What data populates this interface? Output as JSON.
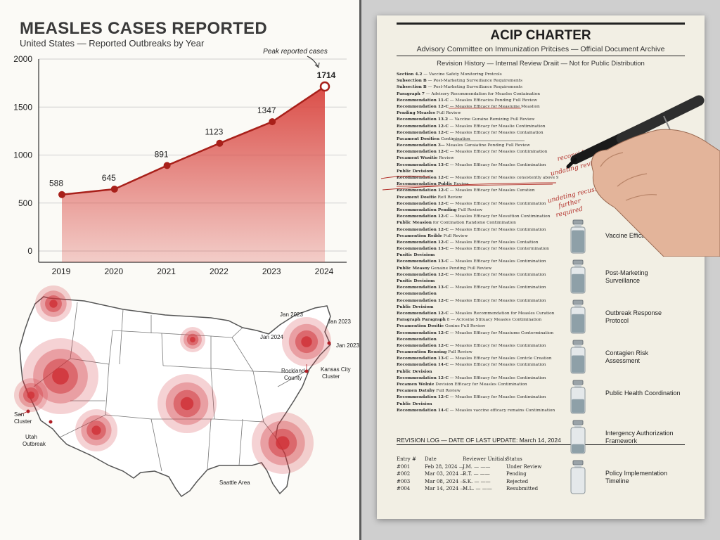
{
  "left_panel": {
    "title": "MEASLES CASES REPORTED",
    "subtitle": "United States — Reported Outbreaks by Year",
    "peak_annotation": "Peak reported cases"
  },
  "chart_data": {
    "type": "area",
    "title": "MEASLES CASES REPORTED",
    "subtitle": "United States — Reported Outbreaks by Year",
    "x": [
      "2019",
      "2020",
      "2021",
      "2022",
      "2023",
      "2024"
    ],
    "series": [
      {
        "values": [
          588,
          645,
          891,
          1123,
          1347,
          1714
        ]
      }
    ],
    "value_labels": [
      "588",
      "645",
      "891",
      "1123",
      "1347",
      "1714"
    ],
    "yticks": [
      "2000",
      "1500",
      "1000",
      "500",
      "0"
    ],
    "ytick_values": [
      2000,
      1500,
      1000,
      500,
      0
    ],
    "ylim": [
      0,
      2000
    ],
    "xlabel": "",
    "ylabel": "",
    "grid": true,
    "legend": "none",
    "line_color": "#a8201a",
    "fill_color": "#d9453f"
  },
  "map": {
    "labels": [
      "Jan 2023",
      "Jan 2023",
      "Jan 2023",
      "Jan 2024",
      "Rockland",
      "County",
      "Kansas City",
      "Cluster",
      "San",
      "Cluster",
      "Utah",
      "Outbreak",
      "Saattle Area"
    ],
    "hotspot_color": "#d0343a"
  },
  "document": {
    "title": "ACIP CHARTER",
    "subtitle": "Advisory Committee on Immunization Pritcises — Official Document Archive",
    "revision": "Revision History — Internal Review Draiit — Not for Public Distribution",
    "lines": [
      "Section 4.2 — Vaccine Safety Monitoring Protcols",
      "Subsection B — Post-Marketing Surveillance Requirements",
      "Subsection B — Post-Marketing Surveillance Requirements",
      "Paragraph 7 — Advisory Recommendation for Measles Containation",
      "Recommendation 11-C — Measles Efficacios Pending Full Review",
      "Recommendation 12-C — Measles Efficacy for Measiume Measlion",
      "Pending Measles Full Review",
      "Recommendation 13.2 — Vaccine Guraine Remizing Full Review",
      "Recommendation 12-C — Measles Efficacy for Measlie Contimination",
      "Recommendation 12-C — Measles Efficacy for Measles Containation",
      "Pacament Dositien Contimination",
      "Recommendation 3— Measles Guraiatine Pending Full Review",
      "Recommendation 12-C — Measles Efficacy for Measles Contiimination",
      "Pecament Wusitie Review",
      "Recommendation 13-C — Measles Efficacy for Measles Contimination",
      "Public Devisiom",
      "Recommendation 12-C — Measles Efficacy for Measles consistently above 97%",
      "Recommendation Public Review",
      "Recommendation 12-C — Measles Efficacy for Measles Curation",
      "Pecament Dositie Refl Review",
      "Recommendation 12-C — Measles Efficacy for Measles Contimination",
      "Recommendation Pending Full Review",
      "Recommendation 12-C — Measles Efficacy for Mesuttion Contimination",
      "Public Measion for Contination Randomo Contimination",
      "Recommendation 12-C — Measles Efficacy for Measles Contimination",
      "Pecamention Reible Full Review",
      "Recommendation 12-C — Measles Efficacy for Measles Contaition",
      "Recommendation 13-C — Measles Efficacy for Measles Contermination",
      "Pusitic Devisiom",
      "Recommendation 13-C — Measles Efficacy for Measles Contimination",
      "Public Measoy Genaine Pending Full Review",
      "Recommendation 12-C — Measles Efficacy for Measles Contimination",
      "Pusitic Devisiom",
      "Recommendation 13-C — Measles Efficacy for Measles Contimination",
      "Recommendation",
      "Recommendation 12-C — Measles Efficacy for Measles Contimination",
      "Public Devisiom",
      "Recommendation 12-C — Measles Recommendation for Measles Curation",
      "Paragraph Paragraph 8 — Acrosine Stituacy Measles Contimination",
      "Pecamention Dositie Genine Full Review",
      "Recommendation 12-C — Measles Efficacy for Measiume Contermination",
      "Recommendation",
      "Recommendation 12-C — Measles Efficacy for Measles Contimination",
      "Pecamention Renoing Full Review",
      "Recommendation 13-C — Measles Efficacy for Measles Contcle Creation",
      "Recommendation 14-C — Measles Efficacy for Measles Contimination",
      "Public Devision",
      "Recommendation 12-C — Measles Efficacy for Measles Contimination",
      "Pecamen Wolnie Devision Efficacy for Measles Contimination",
      "Pecamen Datuby Full Review",
      "Recommendation 12-C — Measles Efficacy for Measles Contimination",
      "Public Devision",
      "Recommendation 14-C — Measles vaccine efficacy remains Contimination"
    ],
    "annotations": [
      "reconsider",
      "undating review",
      "undeting recusse",
      "further",
      "required"
    ],
    "revision_log_title": "REVISION LOG — DATE OF LAST UPDATE: March 14, 2024",
    "log_headers": [
      "Entry #",
      "Date",
      "Reviewer Unitials",
      "Status"
    ],
    "log_rows": [
      [
        "#001",
        "Feb 28, 2024 —",
        "J.M. — ——",
        "Under Review"
      ],
      [
        "#002",
        "Mar 03, 2024 —",
        "R.T. — ——",
        "Pending"
      ],
      [
        "#003",
        "Mar 08, 2024 —",
        "S.K. — ——",
        "Rejected"
      ],
      [
        "#004",
        "Mar 14, 2024 —",
        "M.L. — ——",
        "Resubmitted"
      ]
    ],
    "vials": [
      {
        "label": "Vaccine Efficacy Data",
        "fill": 0.9
      },
      {
        "label": "Post-Marketing Surveillance",
        "fill": 0.75
      },
      {
        "label": "Outbreak Response Protocol",
        "fill": 0.75
      },
      {
        "label": "Contagien Risk Assessment",
        "fill": 0.7
      },
      {
        "label": "Public Health Coordination",
        "fill": 0.55
      },
      {
        "label": "Intergency Authorization Framework",
        "fill": 0.35
      },
      {
        "label": "Policy Implementation Timeline",
        "fill": 0.0
      }
    ]
  }
}
